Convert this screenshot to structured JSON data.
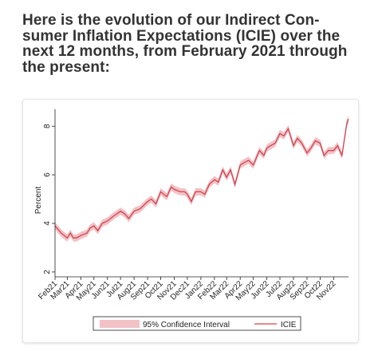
{
  "heading": "Here is the evolution of our Indirect Con-sumer Inflation Expectations (ICIE) over the next 12 months, from February 2021 through the present:",
  "colors": {
    "line": "#d1434f",
    "band": "#f2c2c6",
    "axis": "#222222",
    "border": "#e5e5e5"
  },
  "chart_data": {
    "type": "line",
    "title": "",
    "xlabel": "",
    "ylabel": "Percent",
    "ylim": [
      1.8,
      8.5
    ],
    "yticks": [
      2,
      4,
      6,
      8
    ],
    "grid": false,
    "legend_position": "bottom",
    "xtick_labels": [
      "Feb21",
      "Mar21",
      "Apr21",
      "May21",
      "Jun21",
      "Jul21",
      "Aug21",
      "Sep21",
      "Oct21",
      "Nov21",
      "Dec21",
      "Jan22",
      "Feb22",
      "Mar22",
      "Apr22",
      "May22",
      "Jun22",
      "Jul22",
      "Aug22",
      "Sep22",
      "Oct22",
      "Nov22"
    ],
    "series": [
      {
        "name": "ICIE",
        "points": [
          [
            "2021-02-01",
            3.9
          ],
          [
            "2021-02-15",
            3.6
          ],
          [
            "2021-03-01",
            3.4
          ],
          [
            "2021-03-08",
            3.6
          ],
          [
            "2021-03-15",
            3.4
          ],
          [
            "2021-03-22",
            3.4
          ],
          [
            "2021-04-01",
            3.5
          ],
          [
            "2021-04-15",
            3.6
          ],
          [
            "2021-04-22",
            3.8
          ],
          [
            "2021-05-01",
            3.9
          ],
          [
            "2021-05-10",
            3.7
          ],
          [
            "2021-05-20",
            4.0
          ],
          [
            "2021-06-01",
            4.1
          ],
          [
            "2021-06-15",
            4.3
          ],
          [
            "2021-07-01",
            4.5
          ],
          [
            "2021-07-10",
            4.4
          ],
          [
            "2021-07-20",
            4.2
          ],
          [
            "2021-08-01",
            4.5
          ],
          [
            "2021-08-15",
            4.6
          ],
          [
            "2021-09-01",
            4.9
          ],
          [
            "2021-09-10",
            5.0
          ],
          [
            "2021-09-20",
            4.8
          ],
          [
            "2021-10-01",
            5.3
          ],
          [
            "2021-10-15",
            5.1
          ],
          [
            "2021-10-25",
            5.5
          ],
          [
            "2021-11-01",
            5.4
          ],
          [
            "2021-11-15",
            5.3
          ],
          [
            "2021-11-25",
            5.3
          ],
          [
            "2021-12-01",
            5.2
          ],
          [
            "2021-12-10",
            4.9
          ],
          [
            "2021-12-20",
            5.3
          ],
          [
            "2022-01-01",
            5.3
          ],
          [
            "2022-01-10",
            5.2
          ],
          [
            "2022-01-20",
            5.6
          ],
          [
            "2022-02-01",
            5.8
          ],
          [
            "2022-02-10",
            5.7
          ],
          [
            "2022-02-20",
            6.2
          ],
          [
            "2022-03-01",
            5.9
          ],
          [
            "2022-03-10",
            6.2
          ],
          [
            "2022-03-20",
            5.6
          ],
          [
            "2022-04-01",
            6.4
          ],
          [
            "2022-04-10",
            6.5
          ],
          [
            "2022-04-20",
            6.6
          ],
          [
            "2022-05-01",
            6.4
          ],
          [
            "2022-05-15",
            7.0
          ],
          [
            "2022-05-25",
            6.8
          ],
          [
            "2022-06-01",
            7.1
          ],
          [
            "2022-06-10",
            7.2
          ],
          [
            "2022-06-20",
            7.3
          ],
          [
            "2022-07-01",
            7.7
          ],
          [
            "2022-07-10",
            7.6
          ],
          [
            "2022-07-20",
            7.9
          ],
          [
            "2022-08-01",
            7.2
          ],
          [
            "2022-08-10",
            7.5
          ],
          [
            "2022-08-20",
            7.3
          ],
          [
            "2022-09-01",
            6.9
          ],
          [
            "2022-09-10",
            7.1
          ],
          [
            "2022-09-20",
            7.4
          ],
          [
            "2022-10-01",
            7.3
          ],
          [
            "2022-10-10",
            6.8
          ],
          [
            "2022-10-20",
            7.0
          ],
          [
            "2022-11-01",
            7.0
          ],
          [
            "2022-11-10",
            7.2
          ],
          [
            "2022-11-20",
            6.8
          ],
          [
            "2022-12-01",
            8.1
          ],
          [
            "2022-12-05",
            8.3
          ]
        ]
      },
      {
        "name": "95% Confidence Interval",
        "band_halfwidth": 0.15
      }
    ]
  }
}
